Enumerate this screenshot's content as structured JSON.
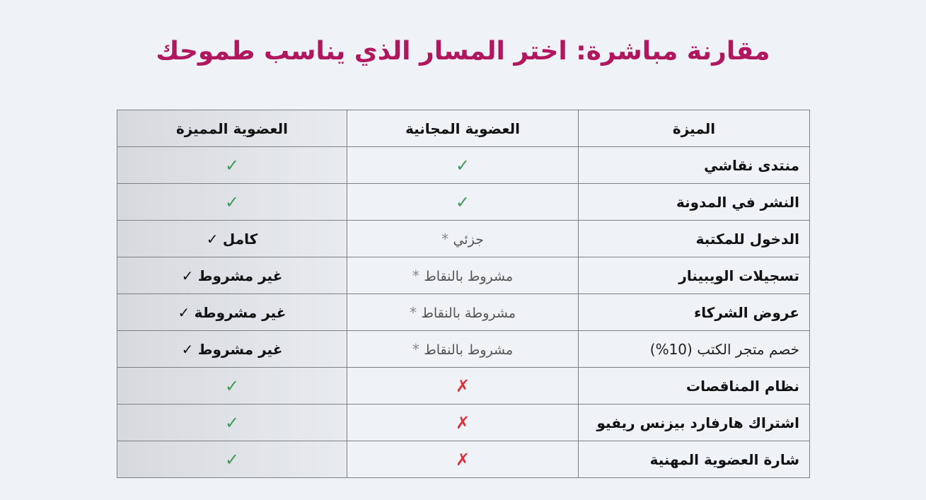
{
  "title": "مقارنة مباشرة: اختر المسار الذي يناسب طموحك",
  "headers": {
    "feature": "الميزة",
    "free": "العضوية المجانية",
    "premium": "العضوية المميزة"
  },
  "symbols": {
    "check": "✓",
    "cross": "✗",
    "star": "*"
  },
  "colors": {
    "title": "#b0175f",
    "check": "#3f9a57",
    "cross": "#d8323a"
  },
  "rows": [
    {
      "feature": "منتدى نقاشي",
      "free": {
        "type": "check"
      },
      "premium": {
        "type": "check"
      }
    },
    {
      "feature": "النشر في المدونة",
      "free": {
        "type": "check"
      },
      "premium": {
        "type": "check"
      }
    },
    {
      "feature": "الدخول للمكتبة",
      "free": {
        "type": "partial",
        "text": "جزئي"
      },
      "premium": {
        "type": "full",
        "text": "كامل"
      }
    },
    {
      "feature": "تسجيلات الويبينار",
      "free": {
        "type": "partial",
        "text": "مشروط بالنقاط"
      },
      "premium": {
        "type": "full",
        "text": "غير مشروط"
      }
    },
    {
      "feature": "عروض الشركاء",
      "free": {
        "type": "partial",
        "text": "مشروطة بالنقاط"
      },
      "premium": {
        "type": "full",
        "text": "غير مشروطة"
      }
    },
    {
      "feature": "خصم متجر الكتب (10%)",
      "feature_style": "normal",
      "free": {
        "type": "partial",
        "text": "مشروط بالنقاط"
      },
      "premium": {
        "type": "full",
        "text": "غير مشروط"
      }
    },
    {
      "feature": "نظام المناقصات",
      "free": {
        "type": "cross"
      },
      "premium": {
        "type": "check"
      }
    },
    {
      "feature": "اشتراك هارفارد بيزنس ريفيو",
      "free": {
        "type": "cross"
      },
      "premium": {
        "type": "check"
      }
    },
    {
      "feature": "شارة العضوية المهنية",
      "free": {
        "type": "cross"
      },
      "premium": {
        "type": "check"
      }
    }
  ]
}
